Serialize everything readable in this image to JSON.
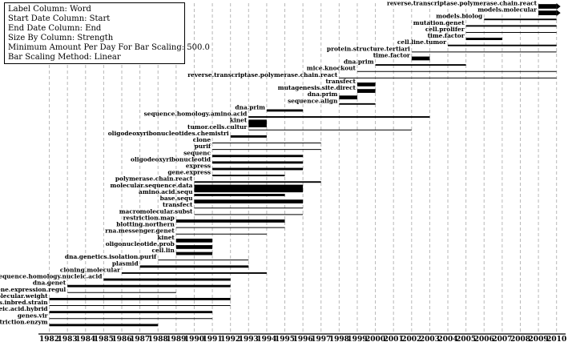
{
  "legend": {
    "lines": [
      "Label Column: Word",
      "Start Date Column: Start",
      "End Date Column: End",
      "Size By Column: Strength",
      "Minimum Amount Per Day For Bar Scaling: 500.0",
      "Bar Scaling Method: Linear"
    ]
  },
  "chart_data": {
    "type": "bar",
    "subtype": "horizontal-timeline",
    "xlim": [
      1981.4,
      2010.5
    ],
    "x_ticks": [
      1982,
      1983,
      1984,
      1985,
      1986,
      1987,
      1988,
      1989,
      1990,
      1991,
      1992,
      1993,
      1994,
      1995,
      1996,
      1997,
      1998,
      1999,
      2000,
      2001,
      2002,
      2003,
      2004,
      2005,
      2006,
      2007,
      2008,
      2009,
      2010
    ],
    "grid": true,
    "bars": [
      {
        "label": "reverse.transcriptase.polymerase.chain.react",
        "start": 2009,
        "end": 2010,
        "strength": 6,
        "arrow": true
      },
      {
        "label": "models.molecular",
        "start": 2009,
        "end": 2010,
        "strength": 6,
        "arrow": true
      },
      {
        "label": "models.biolog",
        "start": 2006,
        "end": 2010,
        "strength": 2
      },
      {
        "label": "mutation.genet",
        "start": 2005,
        "end": 2010,
        "strength": 2
      },
      {
        "label": "cell.prolifer",
        "start": 2005,
        "end": 2010,
        "strength": 1
      },
      {
        "label": "time.factor",
        "start": 2005,
        "end": 2007,
        "strength": 3
      },
      {
        "label": "cell.line.tumor",
        "start": 2004,
        "end": 2010,
        "strength": 2
      },
      {
        "label": "protein.structure.tertiari",
        "start": 2002,
        "end": 2010,
        "strength": 1
      },
      {
        "label": "time.factor",
        "start": 2002,
        "end": 2003,
        "strength": 5
      },
      {
        "label": "dna.prim",
        "start": 2000,
        "end": 2005,
        "strength": 2
      },
      {
        "label": "mice.knockout",
        "start": 1999,
        "end": 2010,
        "strength": 1
      },
      {
        "label": "reverse.transcriptase.polymerase.chain.react",
        "start": 1998,
        "end": 2010,
        "strength": 1
      },
      {
        "label": "transfect",
        "start": 1999,
        "end": 2000,
        "strength": 5
      },
      {
        "label": "mutagenesis.site.direct",
        "start": 1999,
        "end": 2000,
        "strength": 5
      },
      {
        "label": "dna.prim",
        "start": 1998,
        "end": 1999,
        "strength": 5
      },
      {
        "label": "sequence.align",
        "start": 1998,
        "end": 2000,
        "strength": 2
      },
      {
        "label": "dna.prim",
        "start": 1994,
        "end": 1996,
        "strength": 3
      },
      {
        "label": "sequence.homology.amino.acid",
        "start": 1993,
        "end": 2003,
        "strength": 2
      },
      {
        "label": "kinet",
        "start": 1993,
        "end": 1994,
        "strength": 10
      },
      {
        "label": "tumor.cells.cultur",
        "start": 1993,
        "end": 2002,
        "strength": 1
      },
      {
        "label": "oligodeoxyribonucleotides.chemistri",
        "start": 1992,
        "end": 1994,
        "strength": 3
      },
      {
        "label": "clone",
        "start": 1991,
        "end": 1997,
        "strength": 1
      },
      {
        "label": "purif",
        "start": 1991,
        "end": 1997,
        "strength": 1
      },
      {
        "label": "sequenc",
        "start": 1991,
        "end": 1996,
        "strength": 3
      },
      {
        "label": "oligodeoxyribonucleotid",
        "start": 1991,
        "end": 1996,
        "strength": 3
      },
      {
        "label": "express",
        "start": 1991,
        "end": 1996,
        "strength": 3
      },
      {
        "label": "gene.express",
        "start": 1991,
        "end": 1995,
        "strength": 2
      },
      {
        "label": "polymerase.chain.react",
        "start": 1990,
        "end": 1997,
        "strength": 2
      },
      {
        "label": "molecular.sequence.data",
        "start": 1990,
        "end": 1996,
        "strength": 10
      },
      {
        "label": "amino.acid.sequ",
        "start": 1990,
        "end": 1995,
        "strength": 3
      },
      {
        "label": "base.sequ",
        "start": 1990,
        "end": 1996,
        "strength": 5
      },
      {
        "label": "transfect",
        "start": 1990,
        "end": 1996,
        "strength": 1
      },
      {
        "label": "macromolecular.subst",
        "start": 1990,
        "end": 1996,
        "strength": 1
      },
      {
        "label": "restriction.map",
        "start": 1989,
        "end": 1995,
        "strength": 4
      },
      {
        "label": "blotting.northern",
        "start": 1989,
        "end": 1995,
        "strength": 1
      },
      {
        "label": "rna.messenger.genet",
        "start": 1989,
        "end": 1994,
        "strength": 1
      },
      {
        "label": "kinet",
        "start": 1989,
        "end": 1991,
        "strength": 5
      },
      {
        "label": "oligonucleotide.prob",
        "start": 1989,
        "end": 1991,
        "strength": 5
      },
      {
        "label": "cell.lin",
        "start": 1989,
        "end": 1991,
        "strength": 4
      },
      {
        "label": "dna.genetics.isolation.purif",
        "start": 1988,
        "end": 1993,
        "strength": 1
      },
      {
        "label": "plasmid",
        "start": 1987,
        "end": 1993,
        "strength": 3
      },
      {
        "label": "cloning.molecular",
        "start": 1986,
        "end": 1994,
        "strength": 2
      },
      {
        "label": "sequence.homology.nucleic.acid",
        "start": 1985,
        "end": 1992,
        "strength": 3
      },
      {
        "label": "dna.genet",
        "start": 1983,
        "end": 1992,
        "strength": 3
      },
      {
        "label": "gene.expression.regul",
        "start": 1983,
        "end": 1989,
        "strength": 1
      },
      {
        "label": "molecular.weight",
        "start": 1982,
        "end": 1992,
        "strength": 3
      },
      {
        "label": "rats.inbred.strain",
        "start": 1982,
        "end": 1992,
        "strength": 1
      },
      {
        "label": "nucleic.acid.hybrid",
        "start": 1982,
        "end": 1991,
        "strength": 3
      },
      {
        "label": "genes.vir",
        "start": 1982,
        "end": 1991,
        "strength": 1
      },
      {
        "label": "dna.restriction.enzym",
        "start": 1982,
        "end": 1988,
        "strength": 3
      }
    ]
  }
}
